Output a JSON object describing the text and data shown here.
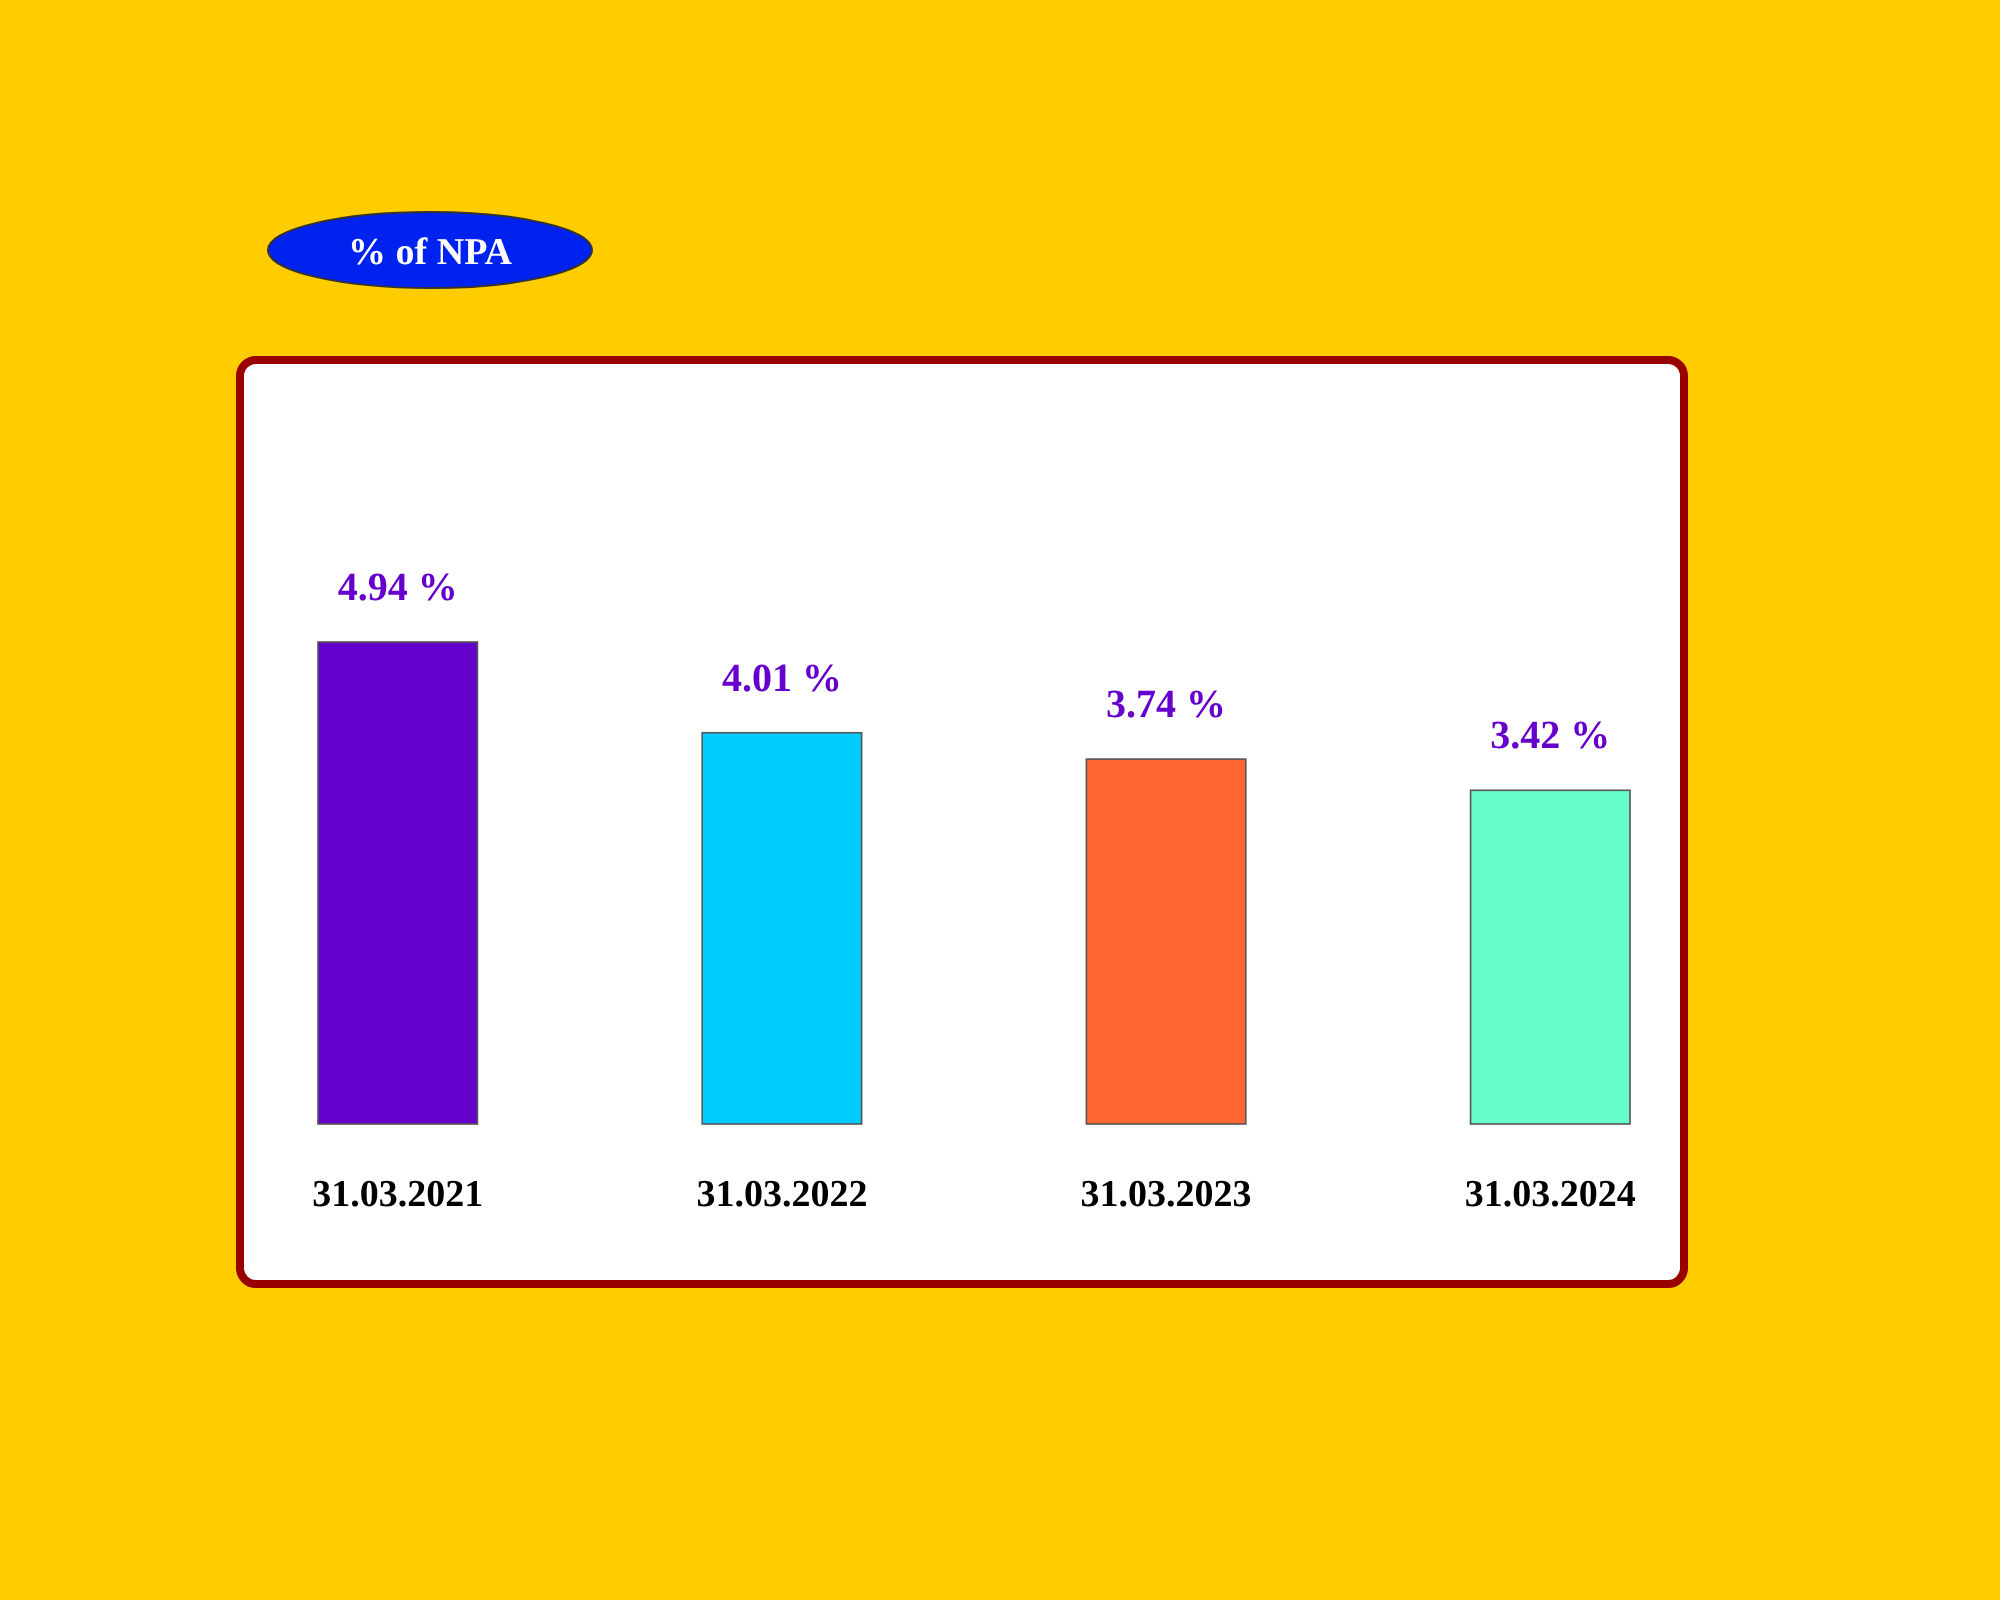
{
  "chart_data": {
    "type": "bar",
    "title": "% of NPA",
    "categories": [
      "31.03.2021",
      "31.03.2022",
      "31.03.2023",
      "31.03.2024"
    ],
    "values": [
      4.94,
      4.01,
      3.74,
      3.42
    ],
    "colors": [
      "#6600cc",
      "#00ccff",
      "#ff6633",
      "#66ffcc"
    ],
    "value_labels": [
      "4.94 %",
      "4.01 %",
      "3.74 %",
      "3.42 %"
    ]
  }
}
